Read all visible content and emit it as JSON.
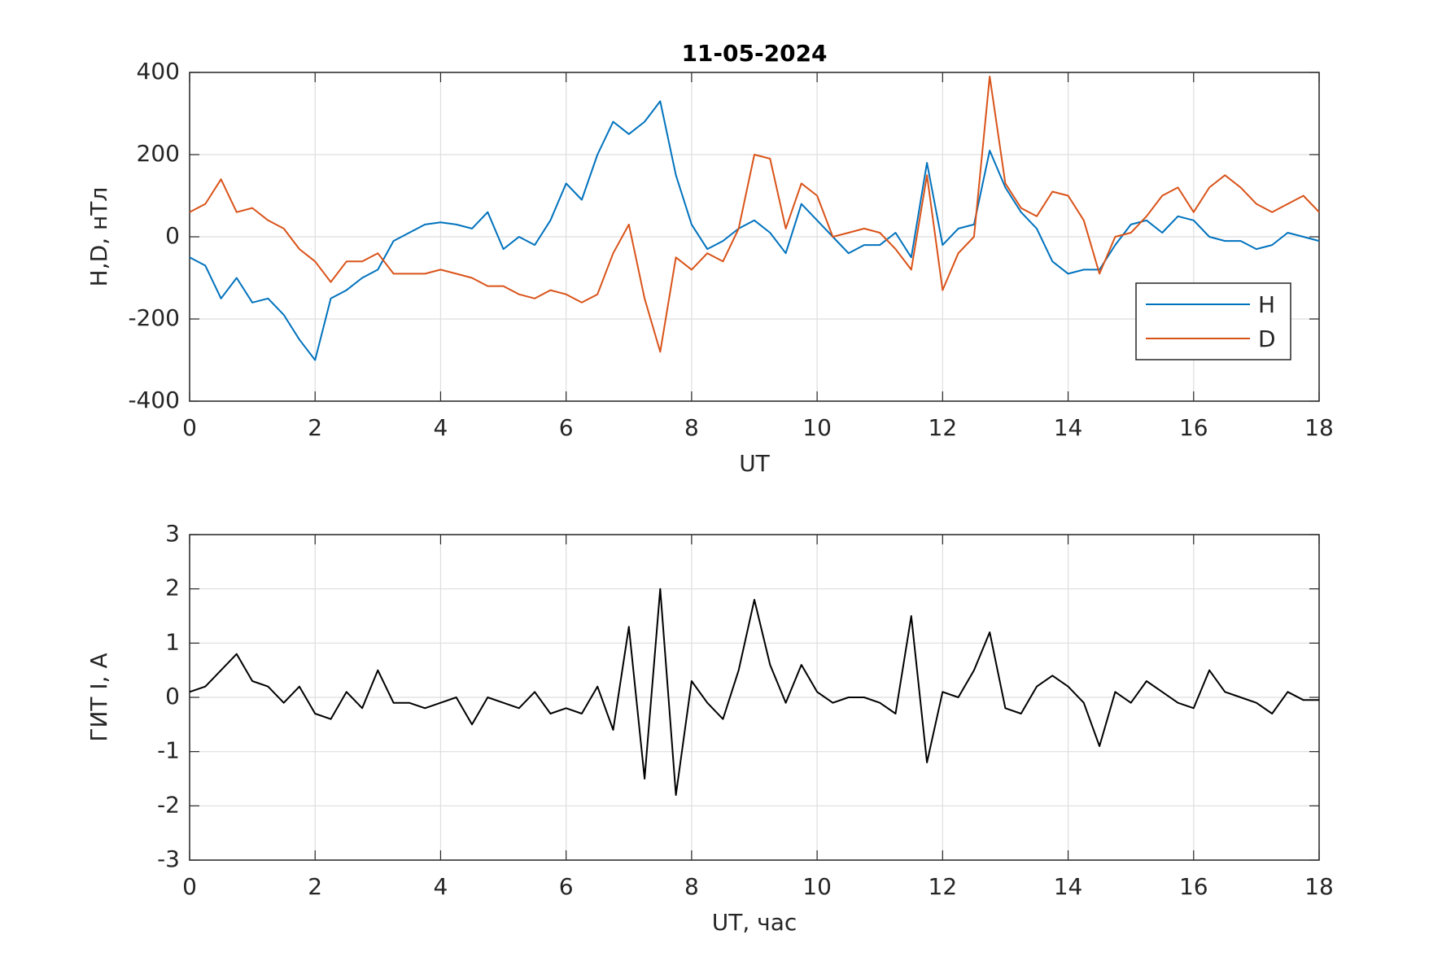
{
  "chart_data": [
    {
      "type": "line",
      "title": "11-05-2024",
      "xlabel": "UT",
      "ylabel": "H,D, нТл",
      "x": [
        0,
        0.25,
        0.5,
        0.75,
        1,
        1.25,
        1.5,
        1.75,
        2,
        2.25,
        2.5,
        2.75,
        3,
        3.25,
        3.5,
        3.75,
        4,
        4.25,
        4.5,
        4.75,
        5,
        5.25,
        5.5,
        5.75,
        6,
        6.25,
        6.5,
        6.75,
        7,
        7.25,
        7.5,
        7.75,
        8,
        8.25,
        8.5,
        8.75,
        9,
        9.25,
        9.5,
        9.75,
        10,
        10.25,
        10.5,
        10.75,
        11,
        11.25,
        11.5,
        11.75,
        12,
        12.25,
        12.5,
        12.75,
        13,
        13.25,
        13.5,
        13.75,
        14,
        14.25,
        14.5,
        14.75,
        15,
        15.25,
        15.5,
        15.75,
        16,
        16.25,
        16.5,
        16.75,
        17,
        17.25,
        17.5,
        17.75,
        18
      ],
      "series": [
        {
          "name": "H",
          "color": "#0072bd",
          "values": [
            -50,
            -70,
            -150,
            -100,
            -160,
            -150,
            -190,
            -250,
            -300,
            -150,
            -130,
            -100,
            -80,
            -10,
            10,
            30,
            35,
            30,
            20,
            60,
            -30,
            0,
            -20,
            40,
            130,
            90,
            200,
            280,
            250,
            280,
            330,
            150,
            30,
            -30,
            -10,
            20,
            40,
            10,
            -40,
            80,
            40,
            0,
            -40,
            -20,
            -20,
            10,
            -50,
            180,
            -20,
            20,
            30,
            210,
            120,
            60,
            20,
            -60,
            -90,
            -80,
            -80,
            -20,
            30,
            40,
            10,
            50,
            40,
            0,
            -10,
            -10,
            -30,
            -20,
            10,
            0,
            -10
          ]
        },
        {
          "name": "D",
          "color": "#d95319",
          "values": [
            60,
            80,
            140,
            60,
            70,
            40,
            20,
            -30,
            -60,
            -110,
            -60,
            -60,
            -40,
            -90,
            -90,
            -90,
            -80,
            -90,
            -100,
            -120,
            -120,
            -140,
            -150,
            -130,
            -140,
            -160,
            -140,
            -40,
            30,
            -150,
            -280,
            -50,
            -80,
            -40,
            -60,
            20,
            200,
            190,
            20,
            130,
            100,
            0,
            10,
            20,
            10,
            -30,
            -80,
            150,
            -130,
            -40,
            0,
            390,
            130,
            70,
            50,
            110,
            100,
            40,
            -90,
            0,
            10,
            50,
            100,
            120,
            60,
            120,
            150,
            120,
            80,
            60,
            80,
            100,
            60
          ]
        }
      ],
      "xlim": [
        0,
        18
      ],
      "xticks": [
        0,
        2,
        4,
        6,
        8,
        10,
        12,
        14,
        16,
        18
      ],
      "ylim": [
        -400,
        400
      ],
      "yticks": [
        -400,
        -200,
        0,
        200,
        400
      ],
      "grid": true,
      "legend": "southeast"
    },
    {
      "type": "line",
      "xlabel": "UT, час",
      "ylabel": "ГИТ I, А",
      "x": [
        0,
        0.25,
        0.5,
        0.75,
        1,
        1.25,
        1.5,
        1.75,
        2,
        2.25,
        2.5,
        2.75,
        3,
        3.25,
        3.5,
        3.75,
        4,
        4.25,
        4.5,
        4.75,
        5,
        5.25,
        5.5,
        5.75,
        6,
        6.25,
        6.5,
        6.75,
        7,
        7.25,
        7.5,
        7.75,
        8,
        8.25,
        8.5,
        8.75,
        9,
        9.25,
        9.5,
        9.75,
        10,
        10.25,
        10.5,
        10.75,
        11,
        11.25,
        11.5,
        11.75,
        12,
        12.25,
        12.5,
        12.75,
        13,
        13.25,
        13.5,
        13.75,
        14,
        14.25,
        14.5,
        14.75,
        15,
        15.25,
        15.5,
        15.75,
        16,
        16.25,
        16.5,
        16.75,
        17,
        17.25,
        17.5,
        17.75,
        18
      ],
      "series": [
        {
          "color": "#000000",
          "values": [
            0.1,
            0.2,
            0.5,
            0.8,
            0.3,
            0.2,
            -0.1,
            0.2,
            -0.3,
            -0.4,
            0.1,
            -0.2,
            0.5,
            -0.1,
            -0.1,
            -0.2,
            -0.1,
            0,
            -0.5,
            0,
            -0.1,
            -0.2,
            0.1,
            -0.3,
            -0.2,
            -0.3,
            0.2,
            -0.6,
            1.3,
            -1.5,
            2.0,
            -1.8,
            0.3,
            -0.1,
            -0.4,
            0.5,
            1.8,
            0.6,
            -0.1,
            0.6,
            0.1,
            -0.1,
            0,
            0,
            -0.1,
            -0.3,
            1.5,
            -1.2,
            0.1,
            0,
            0.5,
            1.2,
            -0.2,
            -0.3,
            0.2,
            0.4,
            0.2,
            -0.1,
            -0.9,
            0.1,
            -0.1,
            0.3,
            0.1,
            -0.1,
            -0.2,
            0.5,
            0.1,
            0,
            -0.1,
            -0.3,
            0.1,
            -0.05,
            -0.05
          ]
        }
      ],
      "xlim": [
        0,
        18
      ],
      "xticks": [
        0,
        2,
        4,
        6,
        8,
        10,
        12,
        14,
        16,
        18
      ],
      "ylim": [
        -3,
        3
      ],
      "yticks": [
        -3,
        -2,
        -1,
        0,
        1,
        2,
        3
      ],
      "grid": true
    }
  ]
}
